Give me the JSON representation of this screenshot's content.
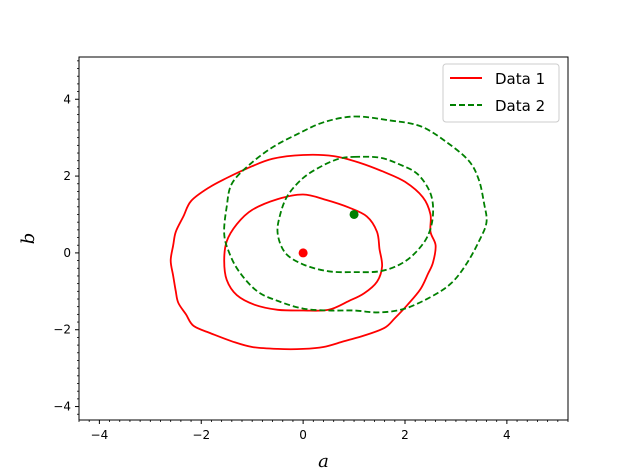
{
  "chart_data": {
    "type": "line",
    "title": "",
    "xlabel": "a",
    "ylabel": "b",
    "xlim": [
      -4.4,
      5.2
    ],
    "ylim": [
      -4.35,
      5.1
    ],
    "xticks": [
      -4,
      -2,
      0,
      2,
      4
    ],
    "yticks": [
      -4,
      -2,
      0,
      2,
      4
    ],
    "xtick_labels": [
      "−4",
      "−2",
      "0",
      "2",
      "4"
    ],
    "ytick_labels": [
      "−4",
      "−2",
      "0",
      "2",
      "4"
    ],
    "minor_tick_step": 0.2,
    "grid": false,
    "legend_position": "top-right",
    "series": [
      {
        "name": "Data 1",
        "color": "#ff0000",
        "style": "solid",
        "center": [
          0,
          0
        ],
        "contours": [
          [
            [
              0.0,
              1.52
            ],
            [
              0.45,
              1.38
            ],
            [
              0.9,
              1.18
            ],
            [
              1.25,
              0.95
            ],
            [
              1.45,
              0.55
            ],
            [
              1.5,
              0.1
            ],
            [
              1.55,
              -0.35
            ],
            [
              1.45,
              -0.75
            ],
            [
              1.2,
              -1.05
            ],
            [
              0.9,
              -1.25
            ],
            [
              0.5,
              -1.48
            ],
            [
              0.0,
              -1.5
            ],
            [
              -0.5,
              -1.48
            ],
            [
              -0.95,
              -1.35
            ],
            [
              -1.3,
              -1.1
            ],
            [
              -1.5,
              -0.7
            ],
            [
              -1.55,
              -0.2
            ],
            [
              -1.5,
              0.3
            ],
            [
              -1.3,
              0.75
            ],
            [
              -1.0,
              1.12
            ],
            [
              -0.5,
              1.4
            ]
          ],
          [
            [
              0.0,
              2.55
            ],
            [
              0.6,
              2.52
            ],
            [
              1.1,
              2.35
            ],
            [
              1.6,
              2.1
            ],
            [
              2.0,
              1.85
            ],
            [
              2.35,
              1.45
            ],
            [
              2.5,
              1.0
            ],
            [
              2.5,
              0.55
            ],
            [
              2.6,
              0.2
            ],
            [
              2.55,
              -0.25
            ],
            [
              2.45,
              -0.55
            ],
            [
              2.3,
              -0.95
            ],
            [
              2.05,
              -1.35
            ],
            [
              1.8,
              -1.7
            ],
            [
              1.6,
              -1.95
            ],
            [
              1.2,
              -2.15
            ],
            [
              0.8,
              -2.3
            ],
            [
              0.4,
              -2.45
            ],
            [
              0.0,
              -2.5
            ],
            [
              -0.5,
              -2.5
            ],
            [
              -1.0,
              -2.45
            ],
            [
              -1.4,
              -2.3
            ],
            [
              -1.8,
              -2.1
            ],
            [
              -2.15,
              -1.9
            ],
            [
              -2.3,
              -1.6
            ],
            [
              -2.45,
              -1.3
            ],
            [
              -2.5,
              -1.0
            ],
            [
              -2.55,
              -0.6
            ],
            [
              -2.6,
              -0.2
            ],
            [
              -2.55,
              0.2
            ],
            [
              -2.5,
              0.55
            ],
            [
              -2.35,
              0.95
            ],
            [
              -2.2,
              1.35
            ],
            [
              -1.85,
              1.7
            ],
            [
              -1.5,
              1.95
            ],
            [
              -1.1,
              2.2
            ],
            [
              -0.6,
              2.45
            ]
          ]
        ]
      },
      {
        "name": "Data 2",
        "color": "#008000",
        "style": "dashed",
        "center": [
          1,
          1
        ],
        "contours": [
          [
            [
              1.0,
              2.5
            ],
            [
              1.5,
              2.48
            ],
            [
              1.9,
              2.3
            ],
            [
              2.25,
              2.05
            ],
            [
              2.5,
              1.55
            ],
            [
              2.55,
              1.0
            ],
            [
              2.45,
              0.45
            ],
            [
              2.2,
              0.0
            ],
            [
              1.9,
              -0.3
            ],
            [
              1.5,
              -0.48
            ],
            [
              1.0,
              -0.5
            ],
            [
              0.5,
              -0.48
            ],
            [
              0.0,
              -0.3
            ],
            [
              -0.35,
              0.0
            ],
            [
              -0.5,
              0.5
            ],
            [
              -0.45,
              1.0
            ],
            [
              -0.3,
              1.5
            ],
            [
              0.0,
              1.95
            ],
            [
              0.35,
              2.25
            ],
            [
              0.7,
              2.45
            ]
          ],
          [
            [
              1.0,
              3.55
            ],
            [
              1.7,
              3.45
            ],
            [
              2.3,
              3.3
            ],
            [
              2.8,
              2.9
            ],
            [
              3.25,
              2.4
            ],
            [
              3.45,
              1.9
            ],
            [
              3.55,
              1.3
            ],
            [
              3.6,
              0.8
            ],
            [
              3.45,
              0.3
            ],
            [
              3.2,
              -0.3
            ],
            [
              2.9,
              -0.8
            ],
            [
              2.5,
              -1.15
            ],
            [
              2.0,
              -1.45
            ],
            [
              1.5,
              -1.55
            ],
            [
              1.0,
              -1.5
            ],
            [
              0.5,
              -1.5
            ],
            [
              0.0,
              -1.45
            ],
            [
              -0.5,
              -1.25
            ],
            [
              -0.9,
              -1.0
            ],
            [
              -1.25,
              -0.5
            ],
            [
              -1.45,
              0.0
            ],
            [
              -1.55,
              0.5
            ],
            [
              -1.5,
              1.2
            ],
            [
              -1.4,
              1.8
            ],
            [
              -1.05,
              2.3
            ],
            [
              -0.6,
              2.75
            ],
            [
              -0.1,
              3.1
            ],
            [
              0.4,
              3.4
            ]
          ]
        ]
      }
    ]
  }
}
